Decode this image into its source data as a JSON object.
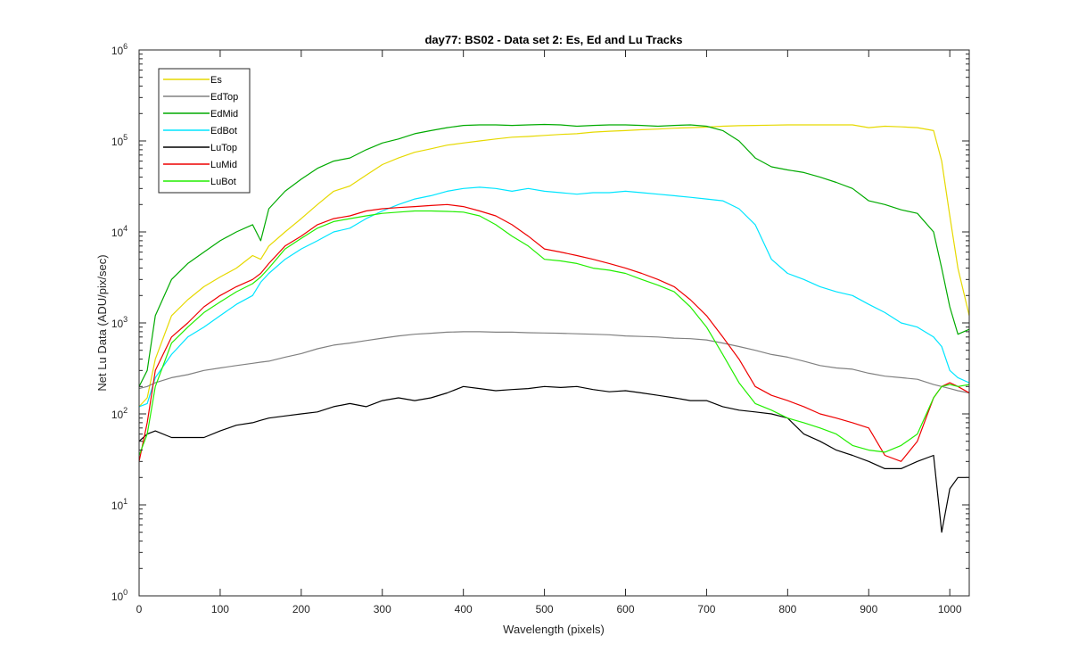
{
  "chart_data": {
    "type": "line",
    "title": "day77: BS02 - Data set 2: Es, Ed and Lu Tracks",
    "xlabel": "Wavelength (pixels)",
    "ylabel": "Net Lu Data (ADU/pix/sec)",
    "xlim": [
      0,
      1024
    ],
    "ylim": [
      1,
      1000000
    ],
    "yscale": "log",
    "grid": false,
    "legend_position": "top-left",
    "x_ticks": [
      "0",
      "100",
      "200",
      "300",
      "400",
      "500",
      "600",
      "700",
      "800",
      "900",
      "1000"
    ],
    "y_ticks": [
      {
        "base": "10",
        "exp": "0"
      },
      {
        "base": "10",
        "exp": "1"
      },
      {
        "base": "10",
        "exp": "2"
      },
      {
        "base": "10",
        "exp": "3"
      },
      {
        "base": "10",
        "exp": "4"
      },
      {
        "base": "10",
        "exp": "5"
      },
      {
        "base": "10",
        "exp": "6"
      }
    ],
    "x": [
      0,
      10,
      20,
      40,
      60,
      80,
      100,
      120,
      140,
      150,
      160,
      180,
      200,
      220,
      240,
      260,
      280,
      300,
      320,
      340,
      360,
      380,
      400,
      420,
      440,
      460,
      480,
      500,
      520,
      540,
      560,
      580,
      600,
      620,
      640,
      660,
      680,
      700,
      720,
      740,
      760,
      780,
      800,
      820,
      840,
      860,
      880,
      900,
      920,
      940,
      960,
      980,
      990,
      1000,
      1010,
      1024
    ],
    "series": [
      {
        "name": "Es",
        "color": "#e6d900",
        "width": 1.2,
        "values": [
          120,
          150,
          400,
          1200,
          1800,
          2500,
          3200,
          4000,
          5500,
          5000,
          7000,
          10000,
          14000,
          20000,
          28000,
          32000,
          42000,
          55000,
          65000,
          75000,
          82000,
          90000,
          95000,
          100000,
          105000,
          110000,
          112000,
          115000,
          118000,
          120000,
          125000,
          128000,
          130000,
          133000,
          135000,
          138000,
          140000,
          142000,
          145000,
          147000,
          148000,
          149000,
          150000,
          150000,
          150000,
          150000,
          150000,
          140000,
          145000,
          143000,
          140000,
          130000,
          60000,
          15000,
          4000,
          1200
        ]
      },
      {
        "name": "EdTop",
        "color": "#808080",
        "width": 1.2,
        "values": [
          190,
          200,
          220,
          250,
          270,
          300,
          320,
          340,
          360,
          370,
          380,
          420,
          460,
          520,
          570,
          600,
          640,
          680,
          720,
          750,
          770,
          790,
          800,
          800,
          790,
          790,
          780,
          775,
          770,
          760,
          750,
          740,
          720,
          710,
          700,
          680,
          670,
          650,
          600,
          550,
          500,
          450,
          420,
          380,
          340,
          320,
          310,
          280,
          260,
          250,
          240,
          210,
          200,
          190,
          180,
          170
        ]
      },
      {
        "name": "EdMid",
        "color": "#00aa00",
        "width": 1.2,
        "values": [
          200,
          300,
          1200,
          3000,
          4500,
          6000,
          8000,
          10000,
          12000,
          8000,
          18000,
          28000,
          38000,
          50000,
          60000,
          65000,
          80000,
          95000,
          105000,
          120000,
          130000,
          140000,
          148000,
          150000,
          150000,
          148000,
          150000,
          152000,
          150000,
          145000,
          148000,
          150000,
          150000,
          148000,
          145000,
          148000,
          150000,
          145000,
          130000,
          100000,
          65000,
          52000,
          48000,
          45000,
          40000,
          35000,
          30000,
          22000,
          20000,
          17500,
          16000,
          10000,
          4000,
          1500,
          750,
          850
        ]
      },
      {
        "name": "EdBot",
        "color": "#00e5ff",
        "width": 1.2,
        "values": [
          120,
          130,
          250,
          450,
          700,
          900,
          1200,
          1600,
          2000,
          2800,
          3500,
          5000,
          6500,
          8000,
          10000,
          11000,
          14000,
          17000,
          20000,
          23000,
          25000,
          28000,
          30000,
          31000,
          30000,
          28000,
          30000,
          28000,
          27000,
          26000,
          27000,
          27000,
          28000,
          27000,
          26000,
          25000,
          24000,
          23000,
          22000,
          18000,
          12000,
          5000,
          3500,
          3000,
          2500,
          2200,
          2000,
          1600,
          1300,
          1000,
          900,
          700,
          550,
          300,
          250,
          220
        ]
      },
      {
        "name": "LuTop",
        "color": "#000000",
        "width": 1.2,
        "values": [
          50,
          60,
          65,
          55,
          55,
          55,
          65,
          75,
          80,
          85,
          90,
          95,
          100,
          105,
          120,
          130,
          120,
          140,
          150,
          140,
          150,
          170,
          200,
          190,
          180,
          185,
          190,
          200,
          195,
          200,
          185,
          175,
          180,
          170,
          160,
          150,
          140,
          140,
          120,
          110,
          105,
          100,
          90,
          60,
          50,
          40,
          35,
          30,
          25,
          25,
          30,
          35,
          5,
          15,
          20,
          20
        ]
      },
      {
        "name": "LuMid",
        "color": "#ee0000",
        "width": 1.2,
        "values": [
          30,
          80,
          300,
          700,
          1000,
          1500,
          2000,
          2500,
          3000,
          3500,
          4500,
          7000,
          9000,
          12000,
          14000,
          15000,
          17000,
          18000,
          18500,
          19000,
          19500,
          20000,
          19000,
          17000,
          15000,
          12000,
          9000,
          6500,
          6000,
          5500,
          5000,
          4500,
          4000,
          3500,
          3000,
          2500,
          1800,
          1200,
          700,
          400,
          200,
          160,
          140,
          120,
          100,
          90,
          80,
          70,
          35,
          30,
          50,
          150,
          200,
          220,
          200,
          170
        ]
      },
      {
        "name": "LuBot",
        "color": "#22ee00",
        "width": 1.2,
        "values": [
          35,
          60,
          200,
          600,
          900,
          1300,
          1700,
          2200,
          2700,
          3200,
          4000,
          6500,
          8500,
          11000,
          13000,
          14000,
          15000,
          16000,
          16500,
          17000,
          17000,
          16800,
          16500,
          15000,
          12000,
          9000,
          7000,
          5000,
          4800,
          4500,
          4000,
          3800,
          3500,
          3000,
          2600,
          2200,
          1500,
          900,
          450,
          220,
          130,
          110,
          90,
          80,
          70,
          60,
          45,
          40,
          38,
          45,
          60,
          150,
          200,
          210,
          200,
          210
        ]
      }
    ]
  }
}
